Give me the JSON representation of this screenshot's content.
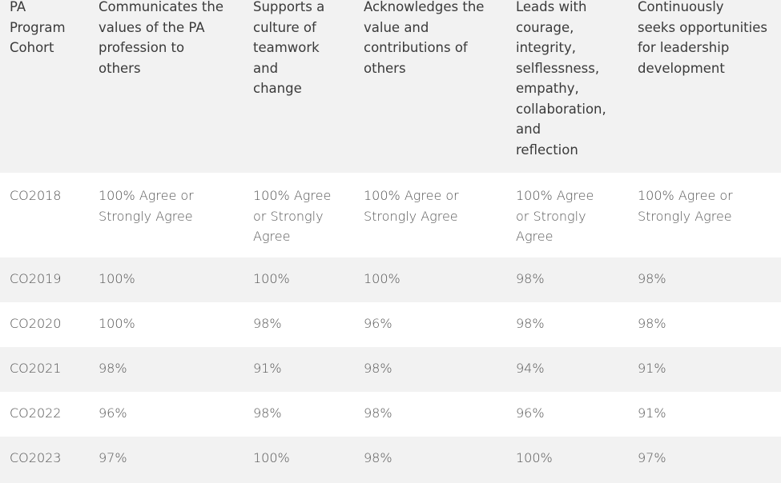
{
  "table": {
    "headers": [
      "PA\nProgram\nCohort",
      "Communicates the\nvalues of the PA\nprofession to\nothers",
      "Supports a\nculture of\nteamwork\nand\nchange",
      "Acknowledges the\nvalue and\ncontributions of\nothers",
      "Leads with\ncourage,\nintegrity,\nselflessness,\nempathy,\ncollaboration,\nand\nreflection",
      "Continuously\nseeks opportunities\nfor leadership\ndevelopment"
    ],
    "rows": [
      [
        "CO2018",
        "100% Agree or\nStrongly Agree",
        "100% Agree\nor Strongly\nAgree",
        "100% Agree or\nStrongly Agree",
        "100% Agree\nor Strongly\nAgree",
        "100% Agree or\nStrongly Agree"
      ],
      [
        "CO2019",
        "100%",
        "100%",
        "100%",
        "98%",
        "98%"
      ],
      [
        "CO2020",
        "100%",
        "98%",
        "96%",
        "98%",
        "98%"
      ],
      [
        "CO2021",
        "98%",
        "91%",
        "98%",
        "94%",
        "91%"
      ],
      [
        "CO2022",
        "96%",
        "98%",
        "98%",
        "96%",
        "91%"
      ],
      [
        "CO2023",
        "97%",
        "100%",
        "98%",
        "100%",
        "97%"
      ]
    ]
  },
  "colors": {
    "shade": "#f2f2f2",
    "text": "#555555",
    "header_text": "#3a3a3a"
  }
}
